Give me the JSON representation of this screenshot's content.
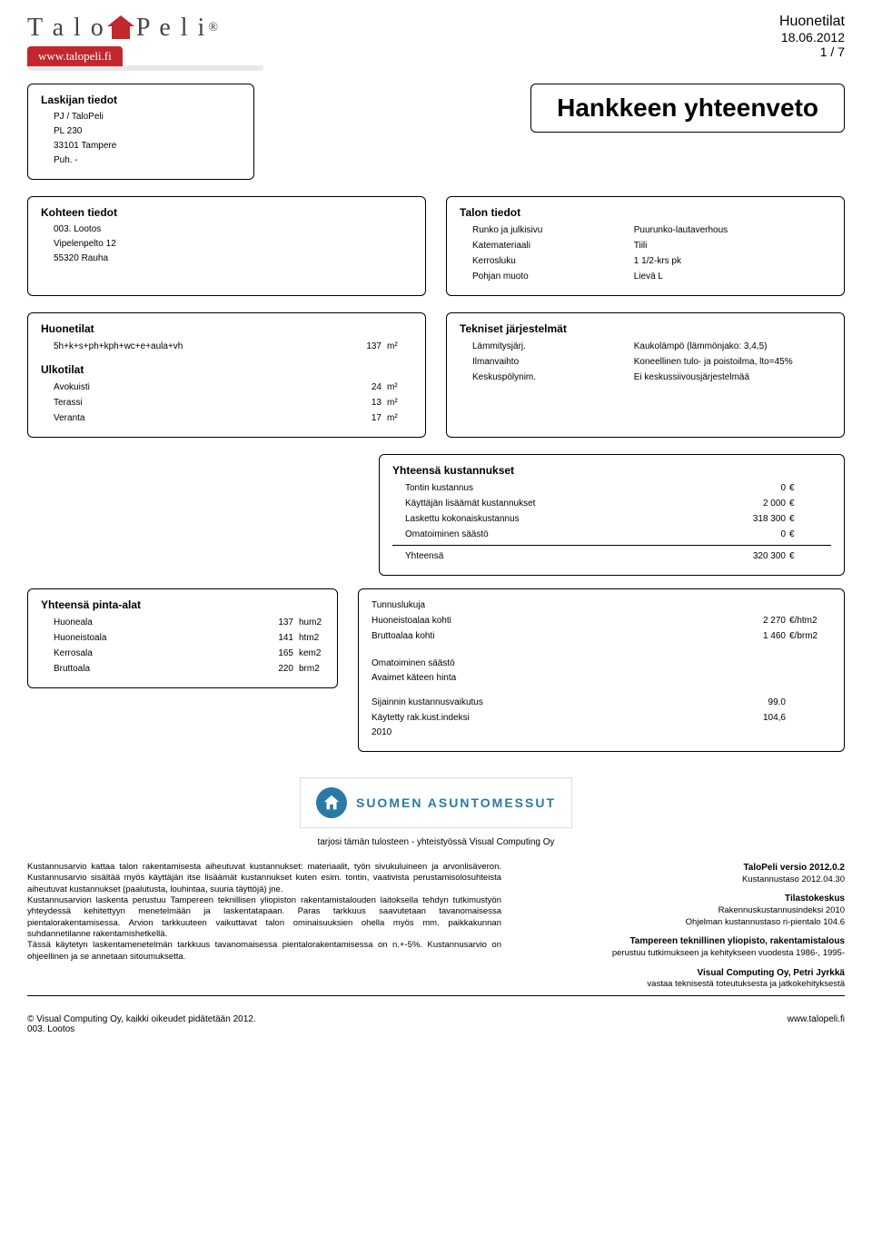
{
  "logo": {
    "part1": "T a l o",
    "part2": "P e l i",
    "reg": "®"
  },
  "url_bar": "www.talopeli.fi",
  "header_right": {
    "title": "Huonetilat",
    "date": "18.06.2012",
    "page": "1 / 7"
  },
  "main_title": "Hankkeen yhteenveto",
  "laskija": {
    "head": "Laskijan tiedot",
    "l1": "PJ / TaloPeli",
    "l2": "PL 230",
    "l3": "33101 Tampere",
    "l4": "Puh. -"
  },
  "kohde": {
    "head": "Kohteen tiedot",
    "l1": "003. Lootos",
    "l2": "Vipelenpelto 12",
    "l3": "55320 Rauha"
  },
  "talon": {
    "head": "Talon tiedot",
    "rows": [
      {
        "k": "Runko ja julkisivu",
        "v": "Puurunko-lautaverhous"
      },
      {
        "k": "Katemateriaali",
        "v": "Tiili"
      },
      {
        "k": "Kerrosluku",
        "v": "1 1/2-krs pk"
      },
      {
        "k": "Pohjan muoto",
        "v": "Lievä L"
      }
    ]
  },
  "huone": {
    "head": "Huonetilat",
    "rows": [
      {
        "n": "5h+k+s+ph+kph+wc+e+aula+vh",
        "v": "137",
        "u": "m²"
      }
    ]
  },
  "ulko": {
    "head": "Ulkotilat",
    "rows": [
      {
        "n": "Avokuisti",
        "v": "24",
        "u": "m²"
      },
      {
        "n": "Terassi",
        "v": "13",
        "u": "m²"
      },
      {
        "n": "Veranta",
        "v": "17",
        "u": "m²"
      }
    ]
  },
  "tekn": {
    "head": "Tekniset järjestelmät",
    "rows": [
      {
        "k": "Lämmitysjärj.",
        "v": "Kaukolämpö (lämmönjako: 3,4,5)"
      },
      {
        "k": "Ilmanvaihto",
        "v": "Koneellinen tulo- ja poistoilma, lto=45%"
      },
      {
        "k": "Keskuspölynim.",
        "v": "Ei keskussiivousjärjestelmää"
      }
    ]
  },
  "yk": {
    "head": "Yhteensä kustannukset",
    "rows": [
      {
        "n": "Tontin kustannus",
        "v": "0",
        "u": "€"
      },
      {
        "n": "Käyttäjän lisäämät kustannukset",
        "v": "2 000",
        "u": "€"
      },
      {
        "n": "Laskettu kokonaiskustannus",
        "v": "318 300",
        "u": "€"
      },
      {
        "n": "Omatoiminen säästö",
        "v": "0",
        "u": "€"
      }
    ],
    "sum": {
      "n": "Yhteensä",
      "v": "320 300",
      "u": "€"
    }
  },
  "tunnus": {
    "head": "Tunnuslukuja",
    "rows": [
      {
        "n": "Huoneistoalaa kohti",
        "v": "2 270",
        "u": "€/htm2"
      },
      {
        "n": "Bruttoalaa kohti",
        "v": "1 460",
        "u": "€/brm2"
      }
    ],
    "extra1": "Omatoiminen säästö",
    "extra2": "Avaimet käteen hinta",
    "rows2": [
      {
        "n": "Sijainnin kustannusvaikutus",
        "v": "99.0",
        "u": ""
      },
      {
        "n": "Käytetty rak.kust.indeksi",
        "v": "104,6",
        "u": ""
      }
    ],
    "year": "2010"
  },
  "pinta": {
    "head": "Yhteensä pinta-alat",
    "rows": [
      {
        "n": "Huoneala",
        "v": "137",
        "u": "hum2"
      },
      {
        "n": "Huoneistoala",
        "v": "141",
        "u": "htm2"
      },
      {
        "n": "Kerrosala",
        "v": "165",
        "u": "kem2"
      },
      {
        "n": "Bruttoala",
        "v": "220",
        "u": "brm2"
      }
    ]
  },
  "messut": "SUOMEN ASUNTOMESSUT",
  "tarjosi": "tarjosi tämän tulosteen - yhteistyössä Visual Computing Oy",
  "legal_left": {
    "p1": "Kustannusarvio kattaa talon rakentamisesta aiheutuvat kustannukset: materiaalit, työn sivukuluineen ja arvonlisäveron. Kustannusarvio sisältää myös käyttäjän itse lisäämät kustannukset kuten esim. tontin, vaativista perustamisolosuhteista aiheutuvat kustannukset (paalutusta, louhintaa, suuria täyttöjä) jne.",
    "p2": "Kustannusarvion laskenta perustuu Tampereen teknillisen yliopiston rakentamistalouden laitoksella tehdyn tutkimustyön yhteydessä kehitettyyn menetelmään ja laskentatapaan. Paras tarkkuus saavutetaan tavanomaisessa pientalorakentamisessa. Arvion tarkkuuteen vaikuttavat talon ominaisuuksien ohella myös mm. paikkakunnan suhdannetilanne rakentamishetkellä.",
    "p3": "Tässä käytetyn laskentamenetelmän tarkkuus tavanomaisessa pientalorakentamisessa on n.+-5%. Kustannusarvio on ohjeellinen ja se annetaan sitoumuksetta."
  },
  "legal_right": {
    "l1b": "TaloPeli versio 2012.0.2",
    "l1": "Kustannustaso 2012.04.30",
    "l2b": "Tilastokeskus",
    "l2a": "Rakennuskustannusindeksi 2010",
    "l2c": "Ohjelman kustannustaso ri-pientalo 104.6",
    "l3b": "Tampereen teknillinen yliopisto, rakentamistalous",
    "l3": "perustuu tutkimukseen ja kehitykseen vuodesta 1986-, 1995-",
    "l4b": "Visual Computing Oy, Petri Jyrkkä",
    "l4": "vastaa teknisestä toteutuksesta ja jatkokehityksestä"
  },
  "footer": {
    "l1": "© Visual Computing Oy, kaikki oikeudet pidätetään 2012.",
    "l2": "003. Lootos",
    "r": "www.talopeli.fi"
  }
}
